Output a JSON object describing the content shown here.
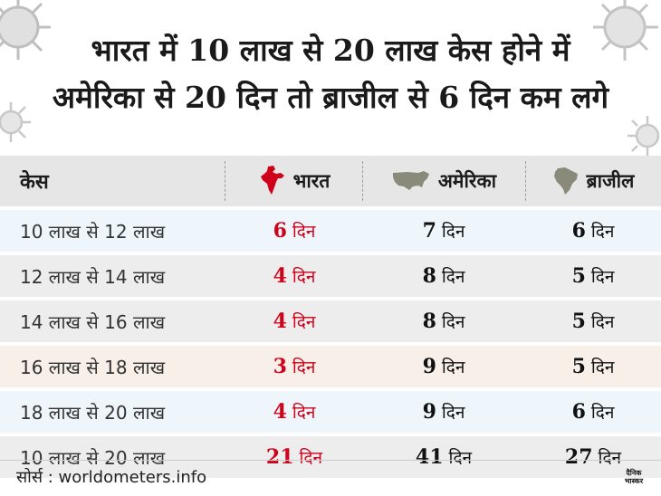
{
  "title": {
    "line1": "भारत में 10 लाख से 20 लाख केस होने में",
    "line2": "अमेरिका से 20 दिन तो ब्राजील से 6 दिन कम लगे"
  },
  "table": {
    "headers": [
      "केस",
      "भारत",
      "अमेरिका",
      "ब्राजील"
    ],
    "rows": [
      {
        "range": "10 लाख से 12 लाख",
        "india": "6",
        "usa": "7",
        "brazil": "6"
      },
      {
        "range": "12 लाख से 14 लाख",
        "india": "4",
        "usa": "8",
        "brazil": "5"
      },
      {
        "range": "14 लाख से 16 लाख",
        "india": "4",
        "usa": "8",
        "brazil": "5"
      },
      {
        "range": "16 लाख से 18 लाख",
        "india": "3",
        "usa": "9",
        "brazil": "5"
      },
      {
        "range": "18 लाख से 20 लाख",
        "india": "4",
        "usa": "9",
        "brazil": "6"
      },
      {
        "range": "10 लाख से 20 लाख",
        "india": "21",
        "usa": "41",
        "brazil": "27"
      }
    ],
    "unit": "दिन"
  },
  "source": "सोर्स : worldometers.info",
  "logo": {
    "line1": "दैनिक",
    "line2": "भास्कर"
  },
  "colors": {
    "accent": "#d0021b",
    "header_bg": "#e6e6e6",
    "map_grey": "#8a8a7a"
  }
}
